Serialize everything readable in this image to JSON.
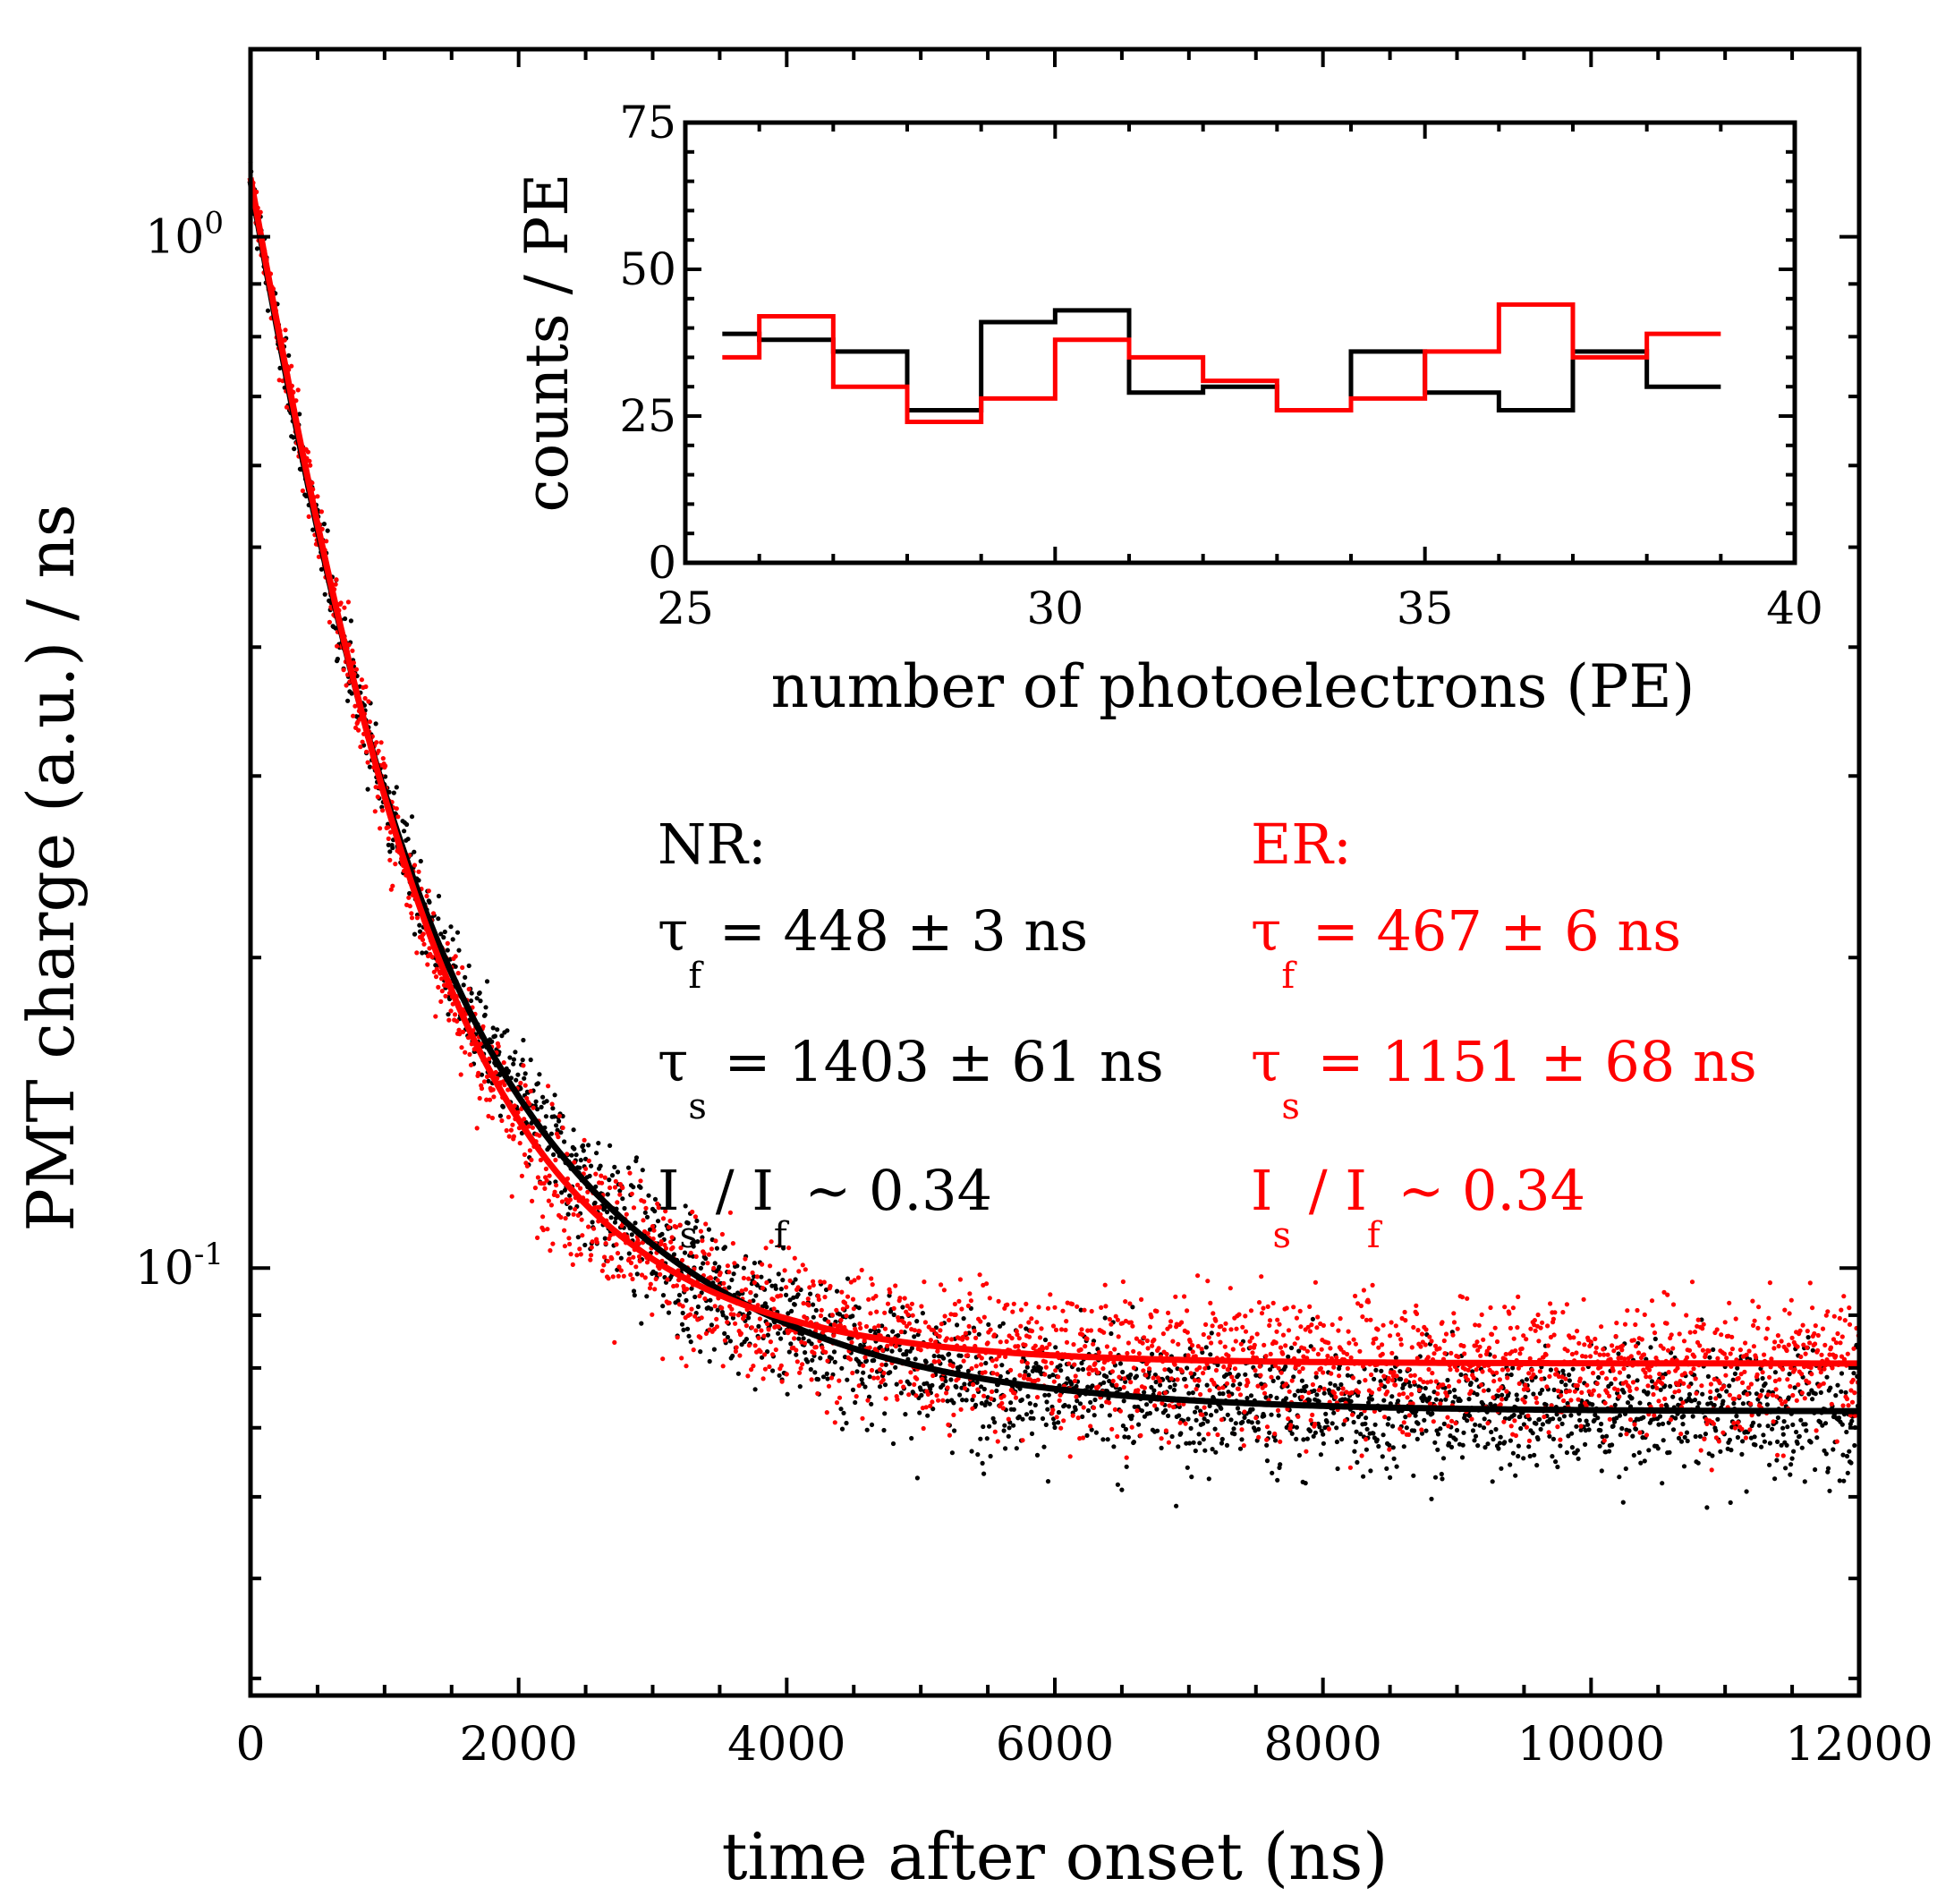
{
  "chart_data": [
    {
      "id": "main",
      "type": "scatter",
      "xlabel": "time after onset (ns)",
      "ylabel": "PMT charge (a.u.) / ns",
      "xlim": [
        0,
        12000
      ],
      "ylim": [
        0.0385,
        1.52
      ],
      "yscale": "log",
      "x_ticks": [
        0,
        2000,
        4000,
        6000,
        8000,
        10000,
        12000
      ],
      "x_tick_labels": [
        "0",
        "2000",
        "4000",
        "6000",
        "8000",
        "10000",
        "12000"
      ],
      "y_major_labels": [
        {
          "value": 1.0,
          "base": "10",
          "exp": "0"
        },
        {
          "value": 0.1,
          "base": "10",
          "exp": "-1"
        }
      ],
      "series": [
        {
          "name": "NR",
          "color": "#000000",
          "scatter_noise": 0.045,
          "fit": {
            "tau_fast_ns": 448,
            "tau_slow_ns": 1403,
            "amp_fast": 0.79,
            "amp_slow": 0.27,
            "baseline": 0.0726
          },
          "annotation": {
            "label": "NR:",
            "tau_f": {
              "pre": "τ",
              "sub": "f",
              "text": " = 448 ± 3 ns"
            },
            "tau_s": {
              "pre": "τ",
              "sub": "s",
              "text": " = 1403 ± 61 ns"
            },
            "ratio": {
              "a": "I",
              "a_sub": "s",
              "mid": " / I",
              "b_sub": "f",
              "text": " ~ 0.34"
            }
          }
        },
        {
          "name": "ER",
          "color": "#ff0000",
          "scatter_noise": 0.05,
          "fit": {
            "tau_fast_ns": 467,
            "tau_slow_ns": 1151,
            "amp_fast": 0.79,
            "amp_slow": 0.27,
            "baseline": 0.0808
          },
          "annotation": {
            "label": "ER:",
            "tau_f": {
              "pre": "τ",
              "sub": "f",
              "text": " = 467 ± 6 ns"
            },
            "tau_s": {
              "pre": "τ",
              "sub": "s",
              "text": " = 1151 ± 68 ns"
            },
            "ratio": {
              "a": "I",
              "a_sub": "s",
              "mid": " / I",
              "b_sub": "f",
              "text": " ~ 0.34"
            }
          }
        }
      ]
    },
    {
      "id": "inset",
      "type": "histogram-step",
      "xlabel": "number of photoelectrons (PE)",
      "ylabel": "counts / PE",
      "xlim": [
        25,
        40
      ],
      "ylim": [
        0,
        75
      ],
      "x_ticks": [
        25,
        30,
        35,
        40
      ],
      "x_tick_labels": [
        "25",
        "30",
        "35",
        "40"
      ],
      "y_ticks": [
        0,
        25,
        50,
        75
      ],
      "y_tick_labels": [
        "0",
        "25",
        "50",
        "75"
      ],
      "bin_edges": [
        25.5,
        26,
        27,
        28,
        29,
        30,
        31,
        32,
        33,
        34,
        35,
        36,
        37,
        38,
        39
      ],
      "series": [
        {
          "name": "NR",
          "color": "#000000",
          "values": [
            39,
            38,
            36,
            26,
            41,
            43,
            29,
            30,
            26,
            36,
            29,
            26,
            36,
            30
          ]
        },
        {
          "name": "ER",
          "color": "#ff0000",
          "values": [
            35,
            42,
            30,
            24,
            28,
            38,
            35,
            31,
            26,
            28,
            36,
            44,
            35,
            39
          ]
        }
      ]
    }
  ]
}
